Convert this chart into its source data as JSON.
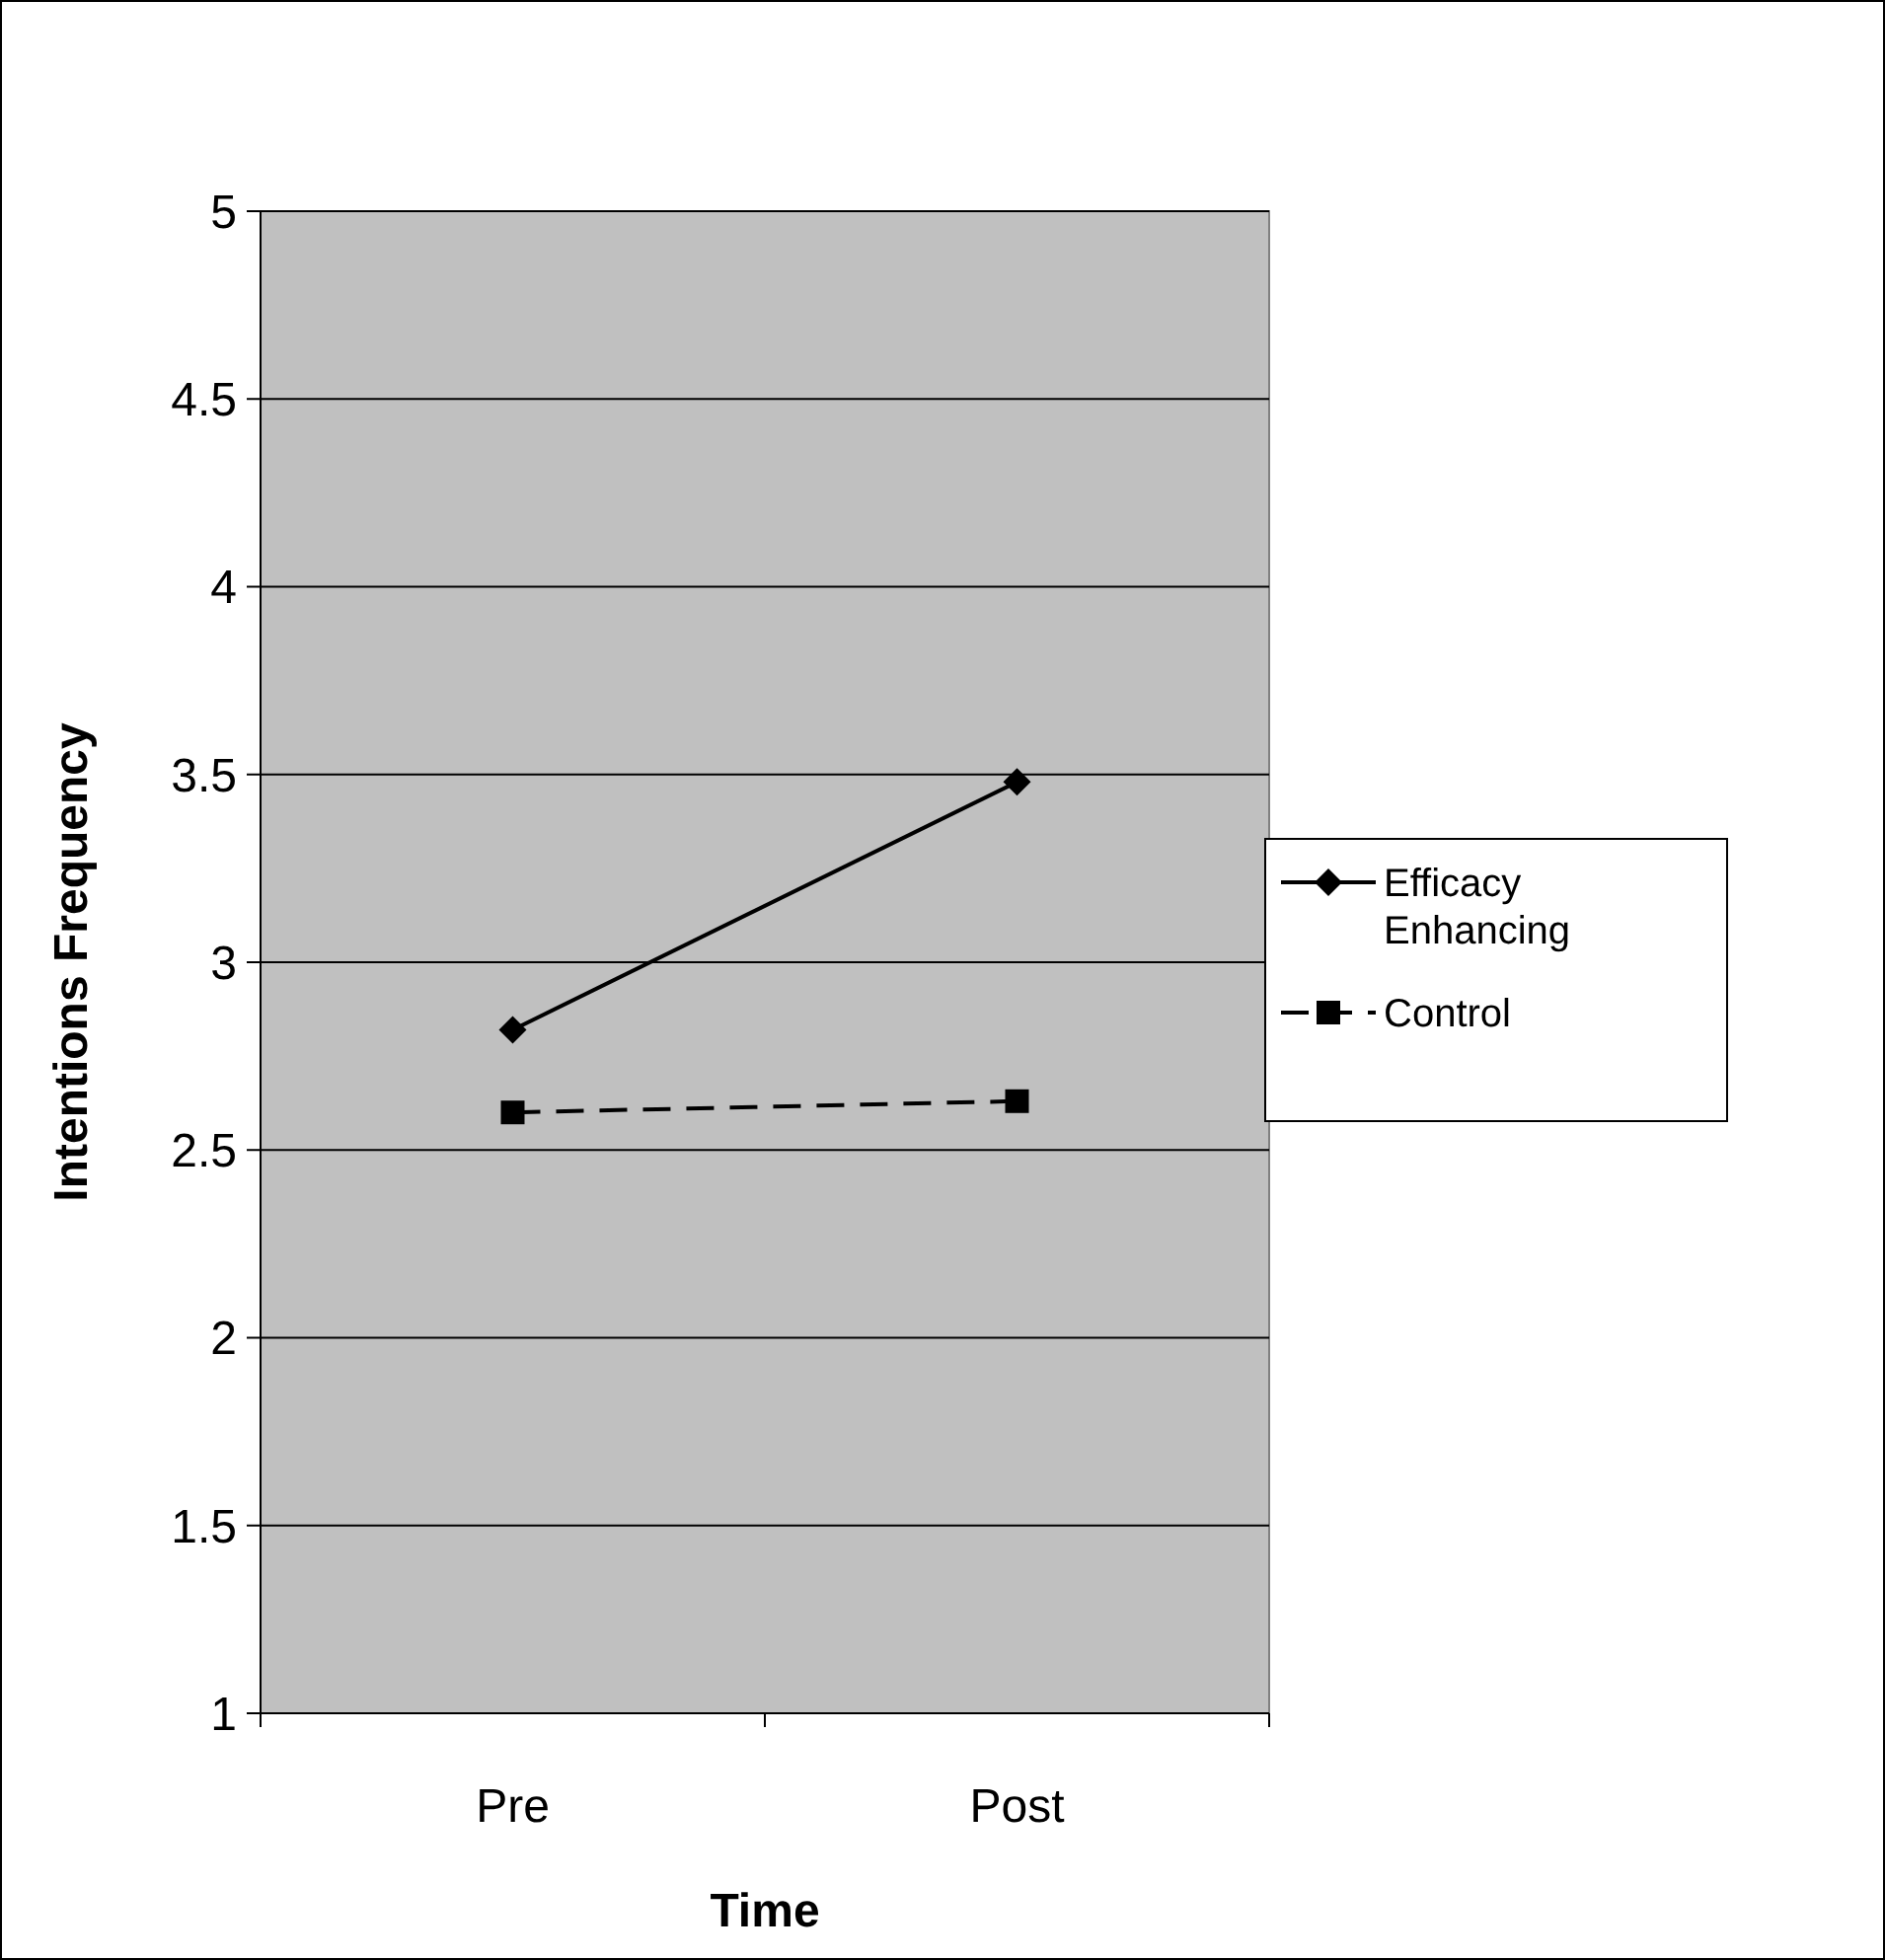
{
  "chart_data": {
    "type": "line",
    "xlabel": "Time",
    "ylabel": "Intentions Frequency",
    "categories": [
      "Pre",
      "Post"
    ],
    "series": [
      {
        "name": "Efficacy Enhancing",
        "color": "#000000",
        "values": [
          2.82,
          3.48
        ],
        "marker": "diamond",
        "line_style": "solid"
      },
      {
        "name": "Control",
        "color": "#000000",
        "values": [
          2.6,
          2.63
        ],
        "marker": "square",
        "line_style": "dashed"
      }
    ],
    "ylim": [
      1,
      5
    ],
    "yticks": [
      1,
      1.5,
      2,
      2.5,
      3,
      3.5,
      4,
      4.5,
      5
    ],
    "grid": "y",
    "legend": "right"
  }
}
